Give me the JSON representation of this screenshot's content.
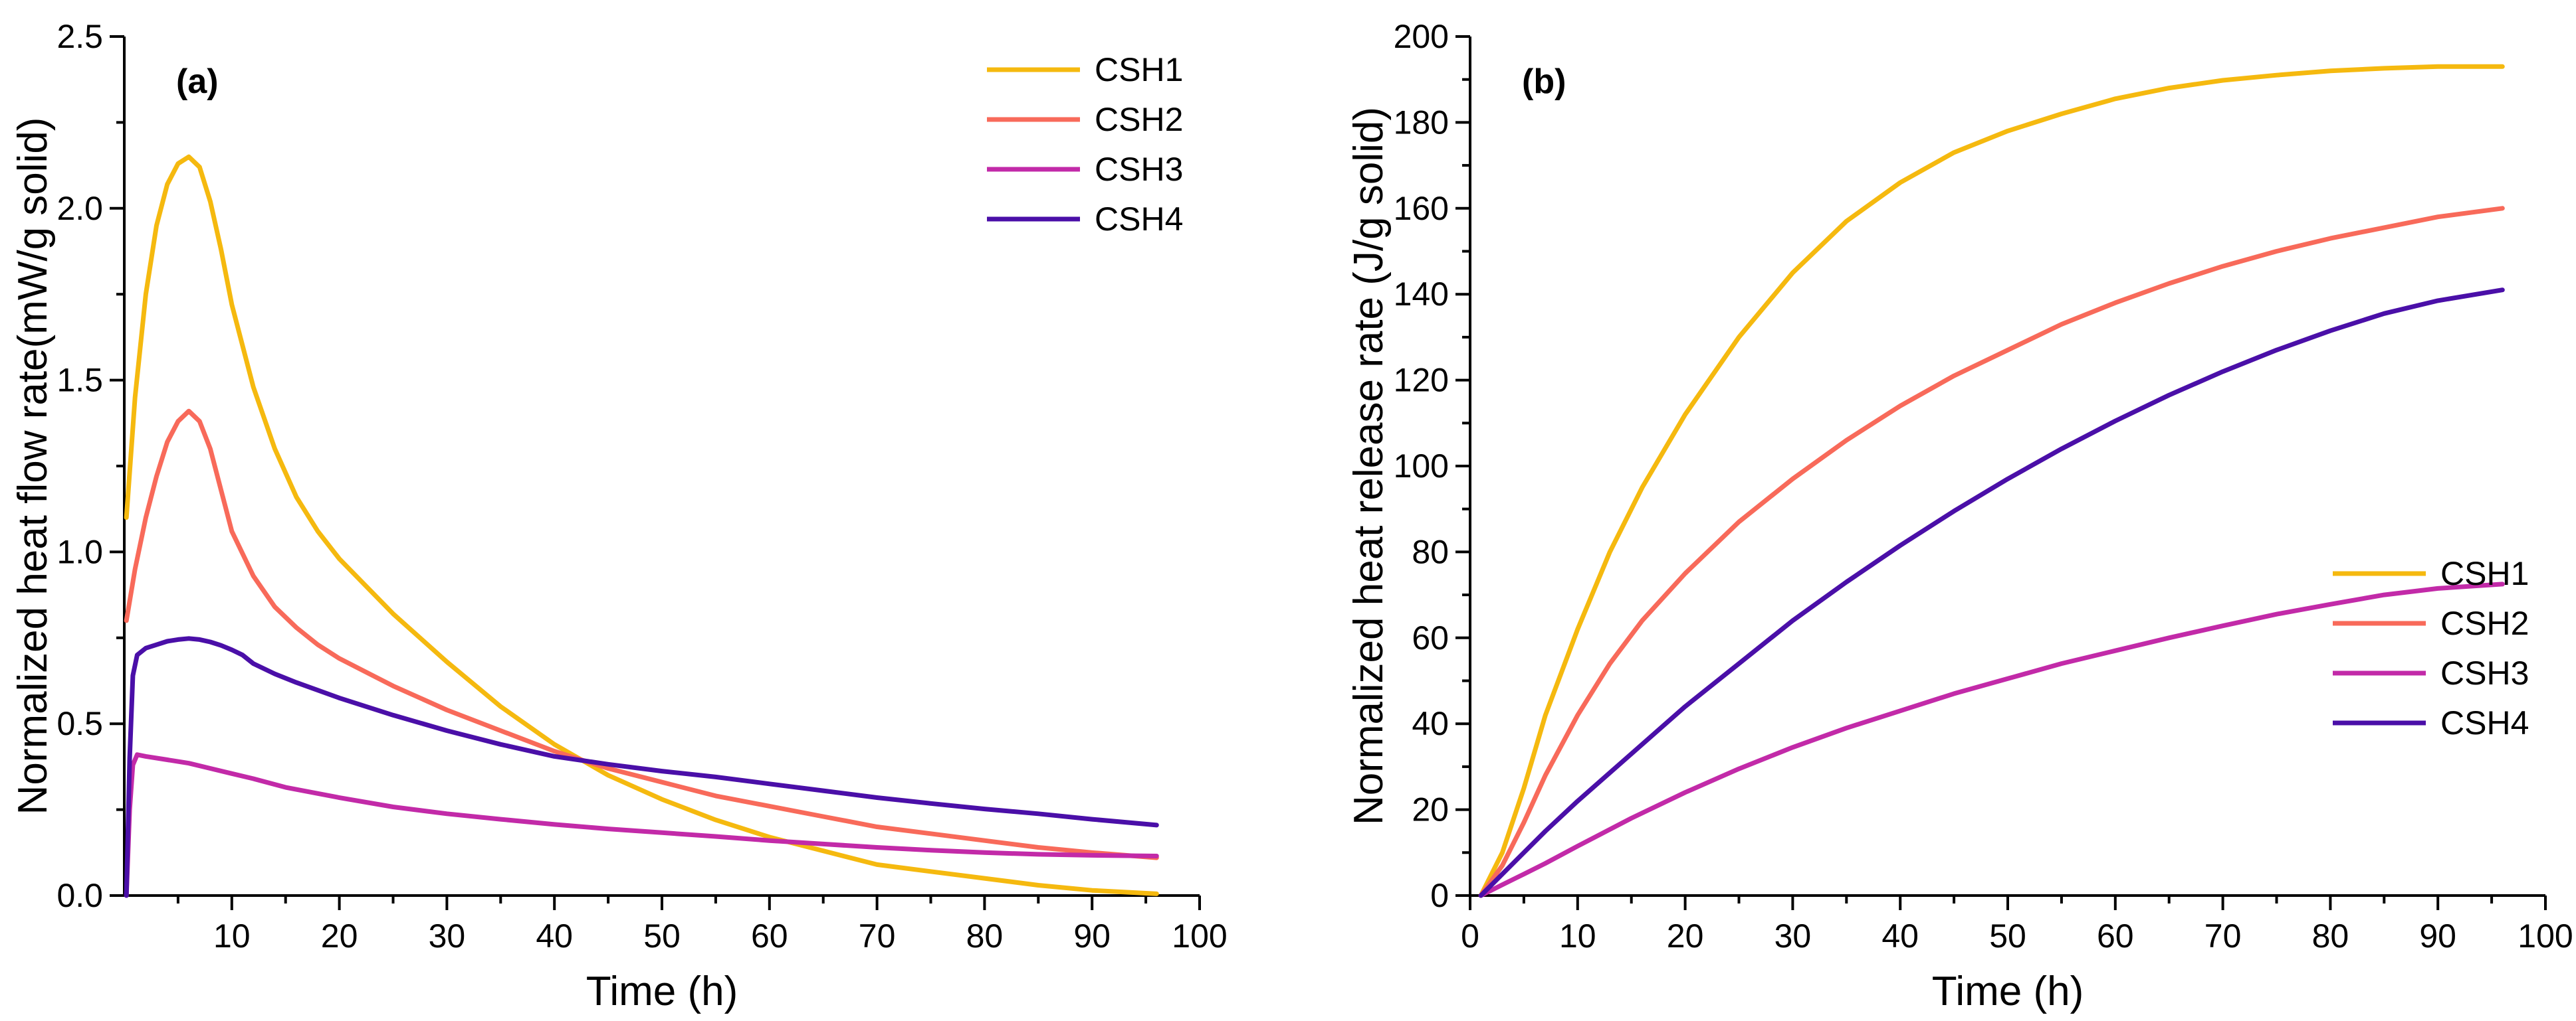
{
  "chart_data": [
    {
      "type": "line",
      "panel_label": "(a)",
      "xlabel": "Time (h)",
      "ylabel": "Normalized heat flow rate(mW/g solid)",
      "xlim": [
        0,
        100
      ],
      "ylim": [
        0,
        2.5
      ],
      "xticks": [
        10,
        20,
        30,
        40,
        50,
        60,
        70,
        80,
        90,
        100
      ],
      "yticks": [
        0.0,
        0.5,
        1.0,
        1.5,
        2.0,
        2.5
      ],
      "ytick_labels": [
        "0.0",
        "0.5",
        "1.0",
        "1.5",
        "2.0",
        "2.5"
      ],
      "legend": "top-right",
      "series": [
        {
          "name": "CSH1",
          "color": "#F5B90F",
          "x": [
            0.2,
            1,
            2,
            3,
            4,
            5,
            6,
            7,
            8,
            9,
            10,
            12,
            14,
            16,
            18,
            20,
            25,
            30,
            35,
            40,
            45,
            50,
            55,
            60,
            65,
            70,
            75,
            80,
            85,
            90,
            96
          ],
          "y": [
            1.1,
            1.45,
            1.75,
            1.95,
            2.07,
            2.13,
            2.15,
            2.12,
            2.02,
            1.88,
            1.72,
            1.48,
            1.3,
            1.16,
            1.06,
            0.98,
            0.82,
            0.68,
            0.55,
            0.44,
            0.35,
            0.28,
            0.22,
            0.17,
            0.13,
            0.09,
            0.07,
            0.05,
            0.03,
            0.015,
            0.005
          ]
        },
        {
          "name": "CSH2",
          "color": "#F86A5A",
          "x": [
            0.2,
            1,
            2,
            3,
            4,
            5,
            6,
            7,
            8,
            9,
            10,
            12,
            14,
            16,
            18,
            20,
            25,
            30,
            35,
            40,
            45,
            50,
            55,
            60,
            65,
            70,
            75,
            80,
            85,
            90,
            96
          ],
          "y": [
            0.8,
            0.95,
            1.1,
            1.22,
            1.32,
            1.38,
            1.41,
            1.38,
            1.3,
            1.18,
            1.06,
            0.93,
            0.84,
            0.78,
            0.73,
            0.69,
            0.61,
            0.54,
            0.48,
            0.42,
            0.37,
            0.33,
            0.29,
            0.26,
            0.23,
            0.2,
            0.18,
            0.16,
            0.14,
            0.125,
            0.11
          ]
        },
        {
          "name": "CSH3",
          "color": "#C22AA8",
          "x": [
            0.2,
            0.5,
            0.8,
            1.2,
            2,
            4,
            6,
            8,
            10,
            12,
            15,
            20,
            25,
            30,
            35,
            40,
            45,
            50,
            55,
            60,
            65,
            70,
            75,
            80,
            85,
            90,
            96
          ],
          "y": [
            0.0,
            0.25,
            0.38,
            0.41,
            0.405,
            0.395,
            0.385,
            0.37,
            0.355,
            0.34,
            0.315,
            0.285,
            0.258,
            0.238,
            0.222,
            0.207,
            0.194,
            0.183,
            0.172,
            0.16,
            0.15,
            0.14,
            0.132,
            0.125,
            0.12,
            0.117,
            0.115
          ]
        },
        {
          "name": "CSH4",
          "color": "#4A0FA8",
          "x": [
            0.2,
            0.5,
            0.8,
            1.2,
            2,
            3,
            4,
            5,
            6,
            7,
            8,
            9,
            10,
            11,
            12,
            14,
            16,
            20,
            25,
            30,
            35,
            40,
            45,
            50,
            55,
            60,
            65,
            70,
            75,
            80,
            85,
            90,
            96
          ],
          "y": [
            0.0,
            0.4,
            0.64,
            0.7,
            0.72,
            0.73,
            0.74,
            0.745,
            0.748,
            0.745,
            0.738,
            0.728,
            0.715,
            0.7,
            0.675,
            0.645,
            0.62,
            0.575,
            0.525,
            0.48,
            0.44,
            0.405,
            0.382,
            0.362,
            0.345,
            0.325,
            0.305,
            0.285,
            0.268,
            0.252,
            0.238,
            0.222,
            0.205
          ]
        }
      ]
    },
    {
      "type": "line",
      "panel_label": "(b)",
      "xlabel": "Time (h)",
      "ylabel": "Normalized heat release rate  (J/g solid)",
      "xlim": [
        0,
        100
      ],
      "ylim": [
        0,
        200
      ],
      "xticks": [
        0,
        10,
        20,
        30,
        40,
        50,
        60,
        70,
        80,
        90,
        100
      ],
      "yticks": [
        0,
        20,
        40,
        60,
        80,
        100,
        120,
        140,
        160,
        180,
        200
      ],
      "ytick_labels": [
        "0",
        "20",
        "40",
        "60",
        "80",
        "100",
        "120",
        "140",
        "160",
        "180",
        "200"
      ],
      "legend": "bottom-right",
      "series": [
        {
          "name": "CSH1",
          "color": "#F5B90F",
          "x": [
            1,
            3,
            5,
            7,
            10,
            13,
            16,
            20,
            25,
            30,
            35,
            40,
            45,
            50,
            55,
            60,
            65,
            70,
            75,
            80,
            85,
            90,
            96
          ],
          "y": [
            0,
            10,
            25,
            42,
            62,
            80,
            95,
            112,
            130,
            145,
            157,
            166,
            173,
            178,
            182,
            185.5,
            188,
            189.8,
            191,
            192,
            192.6,
            193,
            193
          ]
        },
        {
          "name": "CSH2",
          "color": "#F86A5A",
          "x": [
            1,
            3,
            5,
            7,
            10,
            13,
            16,
            20,
            25,
            30,
            35,
            40,
            45,
            50,
            55,
            60,
            65,
            70,
            75,
            80,
            85,
            90,
            96
          ],
          "y": [
            0,
            7,
            17,
            28,
            42,
            54,
            64,
            75,
            87,
            97,
            106,
            114,
            121,
            127,
            133,
            138,
            142.5,
            146.5,
            150,
            153,
            155.5,
            158,
            160
          ]
        },
        {
          "name": "CSH3",
          "color": "#C22AA8",
          "x": [
            1,
            3,
            5,
            7,
            10,
            15,
            20,
            25,
            30,
            35,
            40,
            45,
            50,
            55,
            60,
            65,
            70,
            75,
            80,
            85,
            90,
            96
          ],
          "y": [
            0,
            2.5,
            5,
            7.5,
            11.5,
            18,
            24,
            29.5,
            34.5,
            39,
            43,
            47,
            50.5,
            54,
            57,
            60,
            62.8,
            65.5,
            67.8,
            70,
            71.5,
            72.5
          ]
        },
        {
          "name": "CSH4",
          "color": "#4A0FA8",
          "x": [
            1,
            3,
            5,
            7,
            10,
            15,
            20,
            25,
            30,
            35,
            40,
            45,
            50,
            55,
            60,
            65,
            70,
            75,
            80,
            85,
            90,
            96
          ],
          "y": [
            0,
            5,
            10,
            15,
            22,
            33,
            44,
            54,
            64,
            73,
            81.5,
            89.5,
            97,
            104,
            110.5,
            116.5,
            122,
            127,
            131.5,
            135.5,
            138.5,
            141
          ]
        }
      ]
    }
  ]
}
